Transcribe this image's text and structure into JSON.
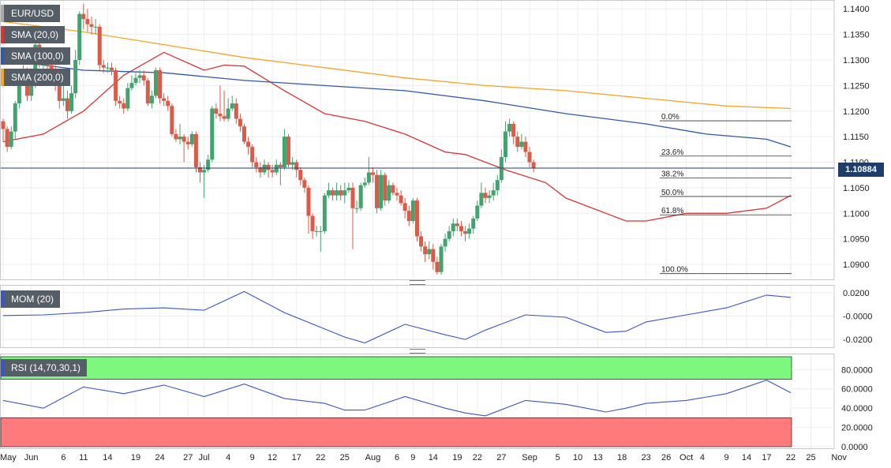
{
  "legend": {
    "symbol": "EUR/USD",
    "sma20": "SMA (20,0)",
    "sma100": "SMA (100,0)",
    "sma200": "SMA (200,0)",
    "mom": "MOM (20)",
    "rsi": "RSI (14,70,30,1)",
    "last_price": "1.10884"
  },
  "colors": {
    "up": "#43a36f",
    "down": "#dc5a48",
    "sma20": "#dc3232",
    "sma100": "#2f5aa8",
    "sma200": "#f5a623",
    "mom_line": "#3a55c8",
    "rsi_line": "#3a55c8",
    "rsi_overbought": "#7df77d",
    "rsi_oversold": "#ff7b7b",
    "last_line": "#1e3d6b"
  },
  "chart_data": [
    {
      "type": "candlestick",
      "title": "EUR/USD",
      "ylim": [
        1.088,
        1.1405
      ],
      "yticks": [
        "1.1400",
        "1.1350",
        "1.1300",
        "1.1250",
        "1.1200",
        "1.1150",
        "1.1100",
        "1.1050",
        "1.1000",
        "1.0950",
        "1.0900"
      ],
      "xticks": [
        "May",
        "Jun",
        "6",
        "11",
        "14",
        "19",
        "24",
        "27",
        "Jul",
        "4",
        "9",
        "12",
        "17",
        "22",
        "25",
        "Aug",
        "6",
        "9",
        "14",
        "19",
        "22",
        "27",
        "Sep",
        "5",
        "10",
        "13",
        "18",
        "23",
        "26",
        "Oct",
        "4",
        "9",
        "14",
        "17",
        "22",
        "25",
        "Nov"
      ],
      "series": [
        {
          "name": "SMA (20,0)",
          "x": [
            0,
            10,
            20,
            30,
            40,
            50,
            55,
            60,
            70,
            80,
            90,
            100,
            110,
            115,
            125,
            135,
            140,
            150,
            155,
            160,
            170,
            180,
            190,
            196
          ],
          "values": [
            1.114,
            1.1155,
            1.12,
            1.127,
            1.1315,
            1.128,
            1.129,
            1.1288,
            1.124,
            1.1195,
            1.118,
            1.1155,
            1.112,
            1.1115,
            1.1085,
            1.106,
            1.103,
            1.1,
            1.0985,
            1.0985,
            1.1,
            1.1,
            1.101,
            1.1035
          ]
        },
        {
          "name": "SMA (100,0)",
          "x": [
            0,
            20,
            40,
            60,
            80,
            100,
            120,
            140,
            160,
            175,
            190,
            196
          ],
          "values": [
            1.13,
            1.128,
            1.1275,
            1.126,
            1.125,
            1.124,
            1.122,
            1.1195,
            1.1175,
            1.1155,
            1.1145,
            1.113
          ]
        },
        {
          "name": "SMA (200,0)",
          "x": [
            0,
            20,
            40,
            60,
            80,
            100,
            120,
            140,
            160,
            180,
            196
          ],
          "values": [
            1.1375,
            1.1355,
            1.133,
            1.1305,
            1.1285,
            1.1265,
            1.125,
            1.124,
            1.1225,
            1.121,
            1.1205
          ]
        }
      ],
      "candles": [
        [
          1.118,
          1.1165,
          1.1185,
          1.114
        ],
        [
          1.1165,
          1.113,
          1.117,
          1.112
        ],
        [
          1.113,
          1.116,
          1.117,
          1.1125
        ],
        [
          1.116,
          1.1215,
          1.122,
          1.1145
        ],
        [
          1.1215,
          1.126,
          1.1275,
          1.1205
        ],
        [
          1.126,
          1.1275,
          1.129,
          1.125
        ],
        [
          1.1275,
          1.123,
          1.1285,
          1.122
        ],
        [
          1.123,
          1.125,
          1.127,
          1.122
        ],
        [
          1.125,
          1.133,
          1.1345,
          1.1245
        ],
        [
          1.133,
          1.129,
          1.135,
          1.1285
        ],
        [
          1.129,
          1.131,
          1.1325,
          1.128
        ],
        [
          1.131,
          1.129,
          1.132,
          1.127
        ],
        [
          1.129,
          1.128,
          1.13,
          1.1265
        ],
        [
          1.128,
          1.125,
          1.129,
          1.124
        ],
        [
          1.125,
          1.122,
          1.126,
          1.1205
        ],
        [
          1.122,
          1.1225,
          1.125,
          1.121
        ],
        [
          1.1225,
          1.12,
          1.124,
          1.1185
        ],
        [
          1.12,
          1.1235,
          1.125,
          1.1195
        ],
        [
          1.1235,
          1.13,
          1.132,
          1.1225
        ],
        [
          1.13,
          1.139,
          1.1395,
          1.129
        ],
        [
          1.139,
          1.138,
          1.141,
          1.136
        ],
        [
          1.138,
          1.137,
          1.14,
          1.1355
        ],
        [
          1.137,
          1.1365,
          1.1385,
          1.135
        ],
        [
          1.1365,
          1.1365,
          1.138,
          1.135
        ],
        [
          1.1365,
          1.129,
          1.137,
          1.128
        ],
        [
          1.129,
          1.1285,
          1.13,
          1.1275
        ],
        [
          1.1285,
          1.1285,
          1.1295,
          1.1275
        ],
        [
          1.1285,
          1.128,
          1.1295,
          1.127
        ],
        [
          1.128,
          1.122,
          1.1285,
          1.121
        ],
        [
          1.122,
          1.1215,
          1.123,
          1.1205
        ],
        [
          1.1215,
          1.1205,
          1.1225,
          1.1195
        ],
        [
          1.1205,
          1.1245,
          1.1255,
          1.12
        ],
        [
          1.1245,
          1.1255,
          1.127,
          1.124
        ],
        [
          1.1255,
          1.1265,
          1.1275,
          1.125
        ],
        [
          1.1265,
          1.127,
          1.128,
          1.1255
        ],
        [
          1.127,
          1.126,
          1.128,
          1.125
        ],
        [
          1.126,
          1.1215,
          1.1265,
          1.121
        ],
        [
          1.1215,
          1.123,
          1.124,
          1.1205
        ],
        [
          1.123,
          1.128,
          1.1285,
          1.1225
        ],
        [
          1.128,
          1.1225,
          1.1285,
          1.1215
        ],
        [
          1.1225,
          1.122,
          1.1235,
          1.121
        ],
        [
          1.122,
          1.121,
          1.123,
          1.12
        ],
        [
          1.121,
          1.1155,
          1.1215,
          1.115
        ],
        [
          1.1155,
          1.1145,
          1.1165,
          1.114
        ],
        [
          1.1145,
          1.115,
          1.1175,
          1.1135
        ],
        [
          1.115,
          1.114,
          1.1155,
          1.11
        ],
        [
          1.114,
          1.1135,
          1.115,
          1.1125
        ],
        [
          1.1135,
          1.1155,
          1.116,
          1.113
        ],
        [
          1.1155,
          1.109,
          1.116,
          1.108
        ],
        [
          1.109,
          1.108,
          1.11,
          1.106
        ],
        [
          1.108,
          1.1085,
          1.1095,
          1.103
        ],
        [
          1.1085,
          1.1105,
          1.1115,
          1.108
        ],
        [
          1.1105,
          1.1205,
          1.121,
          1.11
        ],
        [
          1.1205,
          1.1195,
          1.1215,
          1.1185
        ],
        [
          1.1195,
          1.119,
          1.125,
          1.118
        ],
        [
          1.119,
          1.1185,
          1.124,
          1.118
        ],
        [
          1.1185,
          1.1205,
          1.1225,
          1.118
        ],
        [
          1.1205,
          1.1215,
          1.123,
          1.12
        ],
        [
          1.1215,
          1.1185,
          1.1225,
          1.1175
        ],
        [
          1.1185,
          1.117,
          1.1195,
          1.116
        ],
        [
          1.117,
          1.114,
          1.1175,
          1.1135
        ],
        [
          1.114,
          1.113,
          1.115,
          1.1115
        ],
        [
          1.113,
          1.11,
          1.1135,
          1.109
        ],
        [
          1.11,
          1.109,
          1.111,
          1.108
        ],
        [
          1.109,
          1.108,
          1.11,
          1.107
        ],
        [
          1.108,
          1.1095,
          1.1105,
          1.1075
        ],
        [
          1.1095,
          1.1085,
          1.11,
          1.107
        ],
        [
          1.1085,
          1.108,
          1.1095,
          1.107
        ],
        [
          1.108,
          1.1095,
          1.1105,
          1.1075
        ],
        [
          1.1095,
          1.109,
          1.11,
          1.1055
        ],
        [
          1.109,
          1.115,
          1.1165,
          1.1085
        ],
        [
          1.115,
          1.1095,
          1.1155,
          1.109
        ],
        [
          1.1095,
          1.11,
          1.111,
          1.1085
        ],
        [
          1.11,
          1.1085,
          1.1105,
          1.107
        ],
        [
          1.1085,
          1.1065,
          1.109,
          1.1055
        ],
        [
          1.1065,
          1.105,
          1.107,
          1.104
        ],
        [
          1.105,
          1.0995,
          1.1055,
          1.096
        ],
        [
          1.0995,
          1.0965,
          1.1,
          1.095
        ],
        [
          1.0965,
          1.0965,
          1.0975,
          1.0955
        ],
        [
          1.0965,
          1.0965,
          1.0975,
          1.0925
        ],
        [
          1.0965,
          1.1035,
          1.104,
          1.096
        ],
        [
          1.1035,
          1.1045,
          1.106,
          1.103
        ],
        [
          1.1045,
          1.1035,
          1.105,
          1.1025
        ],
        [
          1.1035,
          1.1045,
          1.106,
          1.1025
        ],
        [
          1.1045,
          1.1035,
          1.1055,
          1.1025
        ],
        [
          1.1035,
          1.1045,
          1.106,
          1.102
        ],
        [
          1.1045,
          1.105,
          1.106,
          1.104
        ],
        [
          1.105,
          1.101,
          1.106,
          1.093
        ],
        [
          1.101,
          1.101,
          1.1025,
          1.1
        ],
        [
          1.101,
          1.1055,
          1.106,
          1.1005
        ],
        [
          1.1055,
          1.106,
          1.107,
          1.105
        ],
        [
          1.106,
          1.108,
          1.111,
          1.1055
        ],
        [
          1.108,
          1.1075,
          1.109,
          1.106
        ],
        [
          1.1075,
          1.101,
          1.1085,
          1.1
        ],
        [
          1.101,
          1.1075,
          1.1085,
          1.1005
        ],
        [
          1.1075,
          1.1025,
          1.108,
          1.1015
        ],
        [
          1.1025,
          1.1055,
          1.1065,
          1.102
        ],
        [
          1.1055,
          1.104,
          1.106,
          1.1035
        ],
        [
          1.104,
          1.1035,
          1.105,
          1.1025
        ],
        [
          1.1035,
          1.102,
          1.1045,
          1.1015
        ],
        [
          1.102,
          1.1005,
          1.103,
          1.099
        ],
        [
          1.1005,
          1.0985,
          1.1015,
          1.0975
        ],
        [
          1.0985,
          1.1025,
          1.103,
          1.098
        ],
        [
          1.1025,
          1.0955,
          1.103,
          1.0945
        ],
        [
          1.0955,
          1.0935,
          1.0965,
          1.0925
        ],
        [
          1.0935,
          1.092,
          1.0945,
          1.0905
        ],
        [
          1.092,
          1.093,
          1.0945,
          1.091
        ],
        [
          1.093,
          1.0905,
          1.094,
          1.089
        ],
        [
          1.0905,
          1.0885,
          1.0915,
          1.088
        ],
        [
          1.0885,
          1.0935,
          1.094,
          1.088
        ],
        [
          1.0935,
          1.095,
          1.096,
          1.0925
        ],
        [
          1.095,
          1.0965,
          1.0975,
          1.0945
        ],
        [
          1.0965,
          1.098,
          1.099,
          1.0955
        ],
        [
          1.098,
          1.0975,
          1.099,
          1.0965
        ],
        [
          1.0975,
          1.0965,
          1.0985,
          1.0955
        ],
        [
          1.0965,
          1.096,
          1.0975,
          1.0945
        ],
        [
          1.096,
          1.097,
          1.098,
          1.095
        ],
        [
          1.097,
          1.099,
          1.0995,
          1.096
        ],
        [
          1.099,
          1.1015,
          1.1025,
          1.0985
        ],
        [
          1.1015,
          1.104,
          1.106,
          1.101
        ],
        [
          1.104,
          1.103,
          1.105,
          1.102
        ],
        [
          1.103,
          1.1035,
          1.1045,
          1.102
        ],
        [
          1.1035,
          1.1045,
          1.106,
          1.1025
        ],
        [
          1.1045,
          1.1065,
          1.1075,
          1.1035
        ],
        [
          1.1065,
          1.111,
          1.1125,
          1.106
        ],
        [
          1.111,
          1.116,
          1.118,
          1.11
        ],
        [
          1.116,
          1.1175,
          1.1185,
          1.115
        ],
        [
          1.1175,
          1.115,
          1.118,
          1.1135
        ],
        [
          1.115,
          1.113,
          1.116,
          1.112
        ],
        [
          1.113,
          1.114,
          1.1155,
          1.1125
        ],
        [
          1.114,
          1.112,
          1.115,
          1.111
        ],
        [
          1.112,
          1.11,
          1.113,
          1.109
        ],
        [
          1.11,
          1.1088,
          1.1105,
          1.108
        ]
      ],
      "last_price": 1.10884,
      "fibonacci": [
        {
          "label": "0.0%",
          "value": 1.1181
        },
        {
          "label": "23.6%",
          "value": 1.1112
        },
        {
          "label": "38.2%",
          "value": 1.1069
        },
        {
          "label": "50.0%",
          "value": 1.1033
        },
        {
          "label": "61.8%",
          "value": 1.0997
        },
        {
          "label": "100.0%",
          "value": 1.0882
        }
      ]
    },
    {
      "type": "line",
      "title": "MOM (20)",
      "ylim": [
        -0.024,
        0.024
      ],
      "yticks": [
        "0.0200",
        "-0.0000",
        "-0.0200"
      ],
      "series": [
        {
          "name": "MOM (20)",
          "x": [
            0,
            10,
            20,
            30,
            40,
            50,
            60,
            70,
            80,
            85,
            90,
            100,
            110,
            115,
            120,
            130,
            140,
            150,
            155,
            160,
            170,
            180,
            190,
            196
          ],
          "values": [
            0.0005,
            0.001,
            0.003,
            0.006,
            0.007,
            0.005,
            0.021,
            0.003,
            -0.011,
            -0.018,
            -0.023,
            -0.007,
            -0.016,
            -0.02,
            -0.012,
            0.001,
            -0.001,
            -0.014,
            -0.013,
            -0.005,
            0.001,
            0.007,
            0.018,
            0.016
          ]
        }
      ]
    },
    {
      "type": "line",
      "title": "RSI (14,70,30,1)",
      "ylim": [
        0,
        95
      ],
      "yticks": [
        "80.0000",
        "60.0000",
        "40.0000",
        "20.0000",
        "0.0000"
      ],
      "bands": {
        "overbought": 70,
        "oversold": 30
      },
      "series": [
        {
          "name": "RSI (14,70,30,1)",
          "x": [
            0,
            10,
            20,
            30,
            40,
            50,
            60,
            70,
            80,
            85,
            90,
            100,
            110,
            115,
            120,
            130,
            140,
            150,
            155,
            160,
            170,
            180,
            190,
            196
          ],
          "values": [
            48,
            40,
            62,
            55,
            64,
            52,
            65,
            50,
            45,
            38,
            38,
            52,
            40,
            35,
            32,
            48,
            44,
            36,
            40,
            45,
            48,
            55,
            69,
            56
          ]
        }
      ]
    }
  ]
}
